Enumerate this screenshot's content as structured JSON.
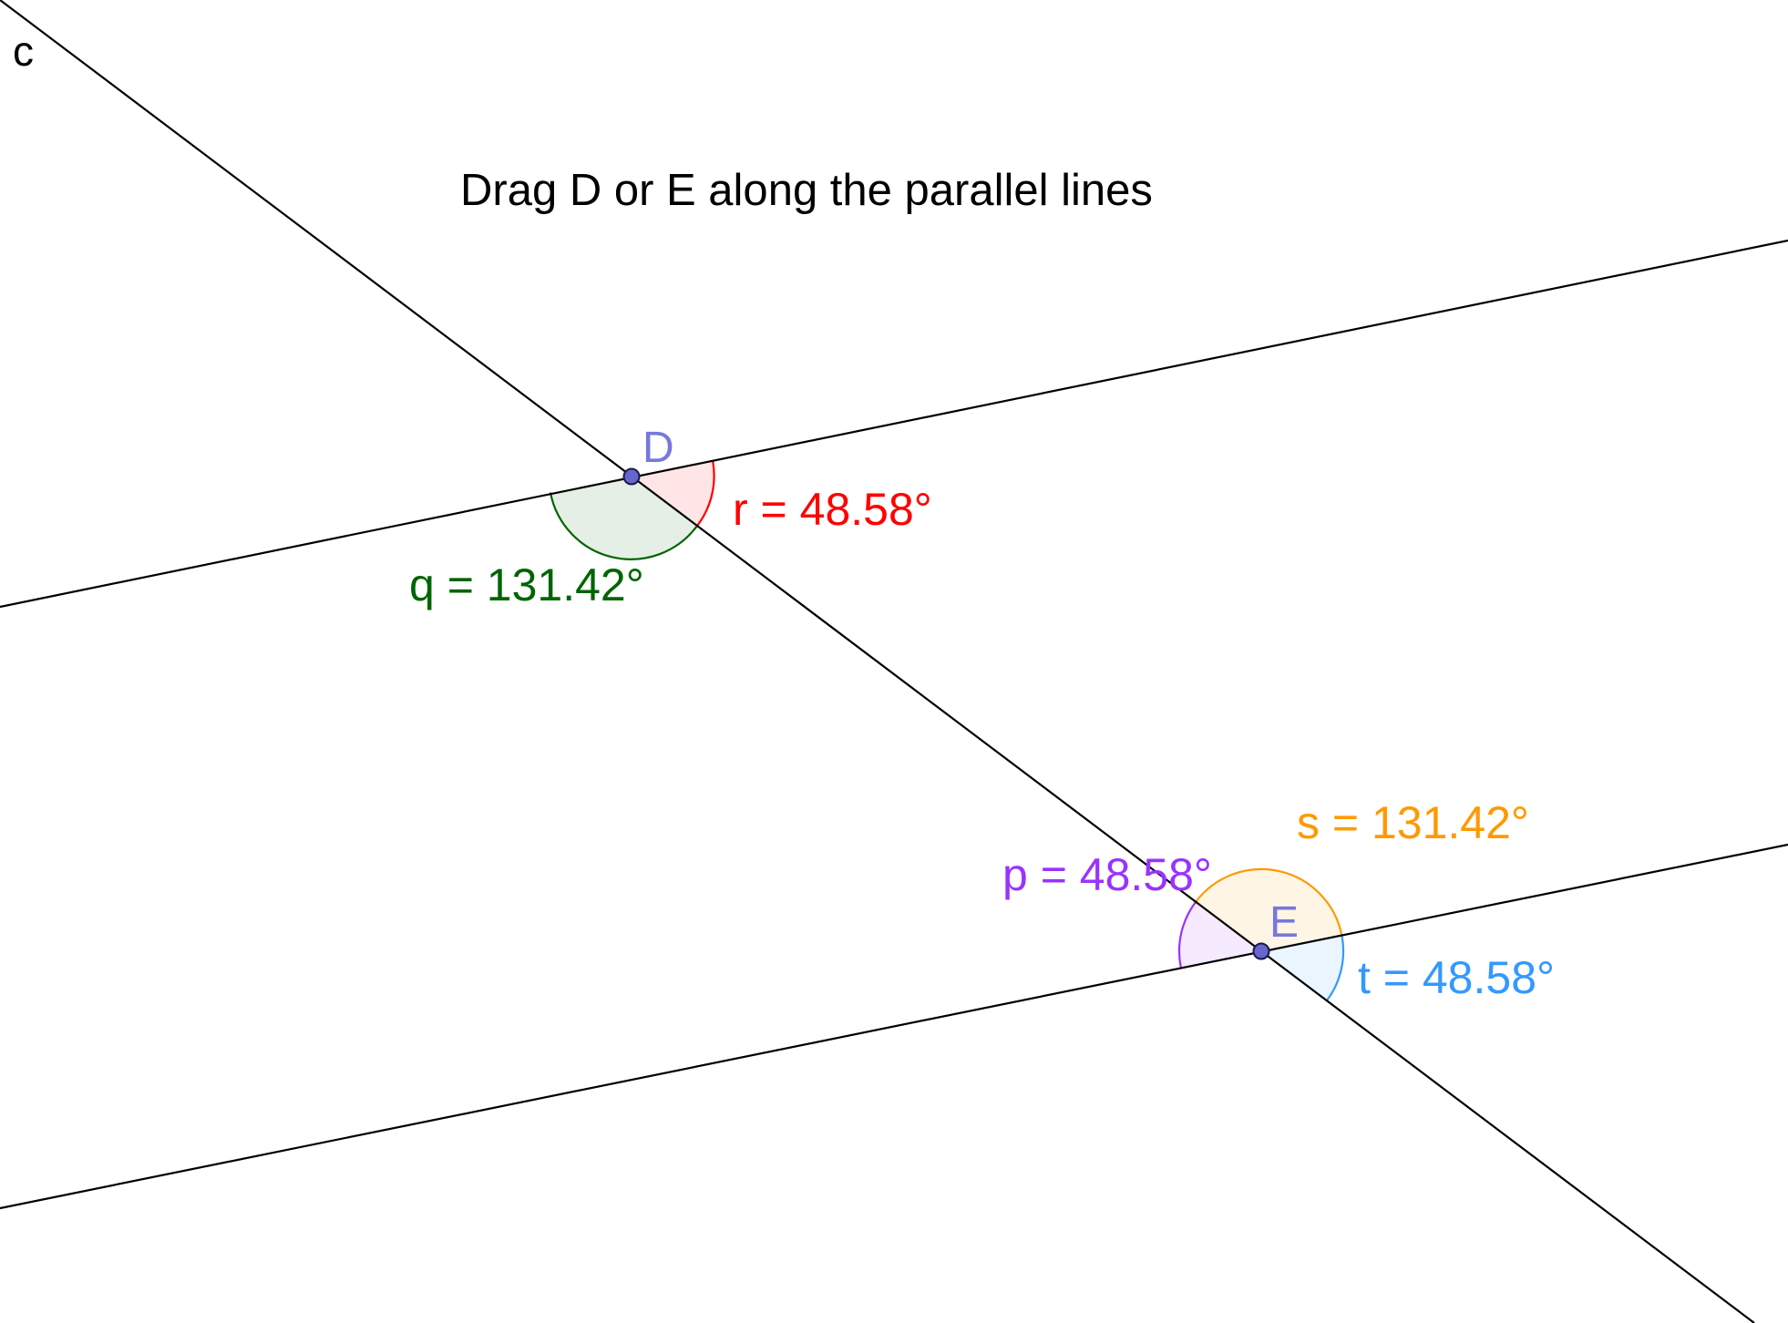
{
  "instruction": "Drag D or E along the parallel lines",
  "transversal_label": "c",
  "points": {
    "D": {
      "label": "D"
    },
    "E": {
      "label": "E"
    }
  },
  "angles": {
    "r": {
      "text": "r = 48.58°",
      "color": "#ff0000"
    },
    "q": {
      "text": "q = 131.42°",
      "color": "#006400"
    },
    "s": {
      "text": "s = 131.42°",
      "color": "#ff9900"
    },
    "p": {
      "text": "p = 48.58°",
      "color": "#9933ff"
    },
    "t": {
      "text": "t = 48.58°",
      "color": "#3399ff"
    }
  },
  "colors": {
    "line": "#000000",
    "point_fill": "#6666cc",
    "point_label": "#7777dd"
  }
}
